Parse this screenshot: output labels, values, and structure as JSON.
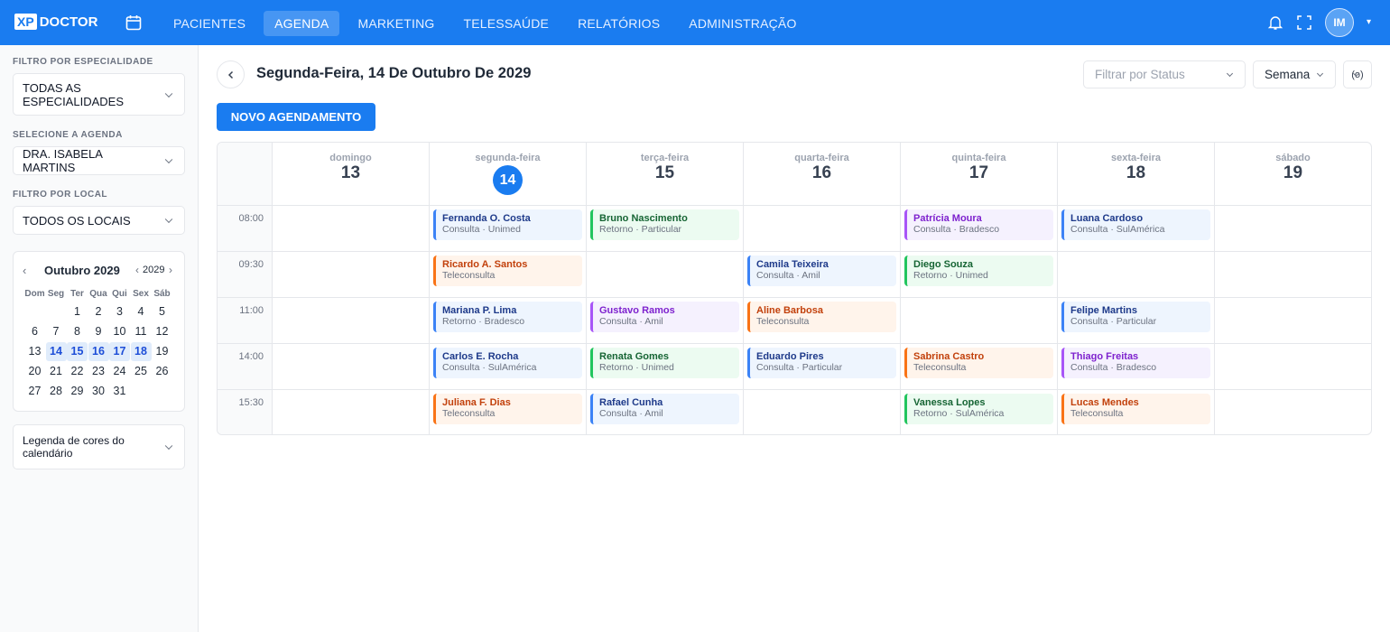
{
  "header": {
    "logo_badge": "XP",
    "logo_text": "DOCTOR",
    "nav": [
      {
        "label": "PACIENTES"
      },
      {
        "label": "AGENDA",
        "active": true
      },
      {
        "label": "MARKETING"
      },
      {
        "label": "TELESSAÚDE"
      },
      {
        "label": "RELATÓRIOS"
      },
      {
        "label": "ADMINISTRAÇÃO"
      }
    ],
    "avatar": "IM"
  },
  "sidebar": {
    "filters": [
      {
        "label": "FILTRO POR ESPECIALIDADE",
        "value": "TODAS AS ESPECIALIDADES"
      },
      {
        "label": "SELECIONE A AGENDA",
        "value": "DRA. ISABELA MARTINS"
      },
      {
        "label": "FILTRO POR LOCAL",
        "value": "TODOS OS LOCAIS"
      }
    ],
    "calendar": {
      "month": "Outubro 2029",
      "year": "2029",
      "weekdays": [
        "Dom",
        "Seg",
        "Ter",
        "Qua",
        "Qui",
        "Sex",
        "Sáb"
      ],
      "weeks": [
        [
          null,
          null,
          1,
          2,
          3,
          4,
          5
        ],
        [
          6,
          7,
          8,
          9,
          10,
          11,
          12
        ],
        [
          13,
          {
            "value": 14,
            "selected": true
          },
          {
            "value": 15,
            "selected": true
          },
          {
            "value": 16,
            "selected": true
          },
          {
            "value": 17,
            "selected": true
          },
          {
            "value": 18,
            "selected": true
          },
          19
        ],
        [
          20,
          21,
          22,
          23,
          24,
          25,
          26
        ],
        [
          27,
          28,
          29,
          30,
          31,
          null,
          null
        ]
      ]
    },
    "legend": "Legenda de cores do calendário"
  },
  "main": {
    "date_title": "Segunda-Feira, 14 De Outubro De 2029",
    "status_placeholder": "Filtrar por Status",
    "view": "Semana",
    "new_button": "NOVO AGENDAMENTO",
    "days": [
      {
        "name": "domingo",
        "number": 13
      },
      {
        "name": "segunda-feira",
        "number": 14,
        "today": true
      },
      {
        "name": "terça-feira",
        "number": 15
      },
      {
        "name": "quarta-feira",
        "number": 16
      },
      {
        "name": "quinta-feira",
        "number": 17
      },
      {
        "name": "sexta-feira",
        "number": 18
      },
      {
        "name": "sábado",
        "number": 19
      }
    ],
    "slots": [
      {
        "time": "08:00",
        "cells": [
          null,
          {
            "name": "Fernanda O. Costa",
            "detail": "Consulta · Unimed",
            "color": "blue"
          },
          {
            "name": "Bruno Nascimento",
            "detail": "Retorno · Particular",
            "color": "green"
          },
          null,
          {
            "name": "Patrícia Moura",
            "detail": "Consulta · Bradesco",
            "color": "purple"
          },
          {
            "name": "Luana Cardoso",
            "detail": "Consulta · SulAmérica",
            "color": "blue"
          },
          null
        ]
      },
      {
        "time": "09:30",
        "cells": [
          null,
          {
            "name": "Ricardo A. Santos",
            "detail": "Teleconsulta",
            "color": "orange"
          },
          null,
          {
            "name": "Camila Teixeira",
            "detail": "Consulta · Amil",
            "color": "blue"
          },
          {
            "name": "Diego Souza",
            "detail": "Retorno · Unimed",
            "color": "green"
          },
          null,
          null
        ]
      },
      {
        "time": "11:00",
        "cells": [
          null,
          {
            "name": "Mariana P. Lima",
            "detail": "Retorno · Bradesco",
            "color": "blue"
          },
          {
            "name": "Gustavo Ramos",
            "detail": "Consulta · Amil",
            "color": "purple"
          },
          {
            "name": "Aline Barbosa",
            "detail": "Teleconsulta",
            "color": "orange"
          },
          null,
          {
            "name": "Felipe Martins",
            "detail": "Consulta · Particular",
            "color": "blue"
          },
          null
        ]
      },
      {
        "time": "14:00",
        "cells": [
          null,
          {
            "name": "Carlos E. Rocha",
            "detail": "Consulta · SulAmérica",
            "color": "blue"
          },
          {
            "name": "Renata Gomes",
            "detail": "Retorno · Unimed",
            "color": "green"
          },
          {
            "name": "Eduardo Pires",
            "detail": "Consulta · Particular",
            "color": "blue"
          },
          {
            "name": "Sabrina Castro",
            "detail": "Teleconsulta",
            "color": "orange"
          },
          {
            "name": "Thiago Freitas",
            "detail": "Consulta · Bradesco",
            "color": "purple"
          },
          null
        ]
      },
      {
        "time": "15:30",
        "cells": [
          null,
          {
            "name": "Juliana F. Dias",
            "detail": "Teleconsulta",
            "color": "orange"
          },
          {
            "name": "Rafael Cunha",
            "detail": "Consulta · Amil",
            "color": "blue"
          },
          null,
          {
            "name": "Vanessa Lopes",
            "detail": "Retorno · SulAmérica",
            "color": "green"
          },
          {
            "name": "Lucas Mendes",
            "detail": "Teleconsulta",
            "color": "orange"
          },
          null
        ]
      }
    ]
  }
}
